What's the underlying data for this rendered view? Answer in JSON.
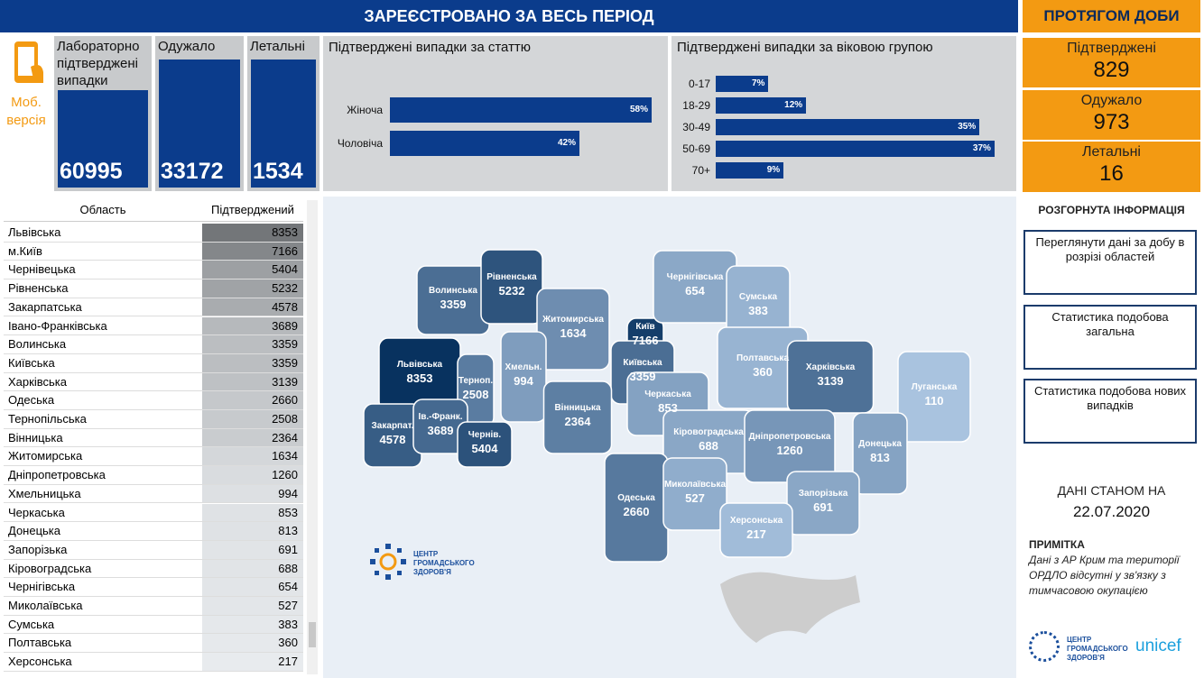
{
  "header": {
    "title": "ЗАРЕЄСТРОВАНО ЗА ВЕСЬ ПЕРІОД",
    "daily_title": "ПРОТЯГОМ ДОБИ"
  },
  "mobile": "Моб. версія",
  "totals": [
    {
      "label": "Лабораторно підтверджені випадки",
      "value": 60995
    },
    {
      "label": "Одужало",
      "value": 33172
    },
    {
      "label": "Летальні",
      "value": 1534
    }
  ],
  "sex_chart": {
    "type": "bar",
    "title": "Підтверджені випадки за статтю",
    "categories": [
      "Жіноча",
      "Чоловіча"
    ],
    "values": [
      58,
      42
    ],
    "value_labels": [
      "58%",
      "42%"
    ],
    "color": "#0b3c8c"
  },
  "age_chart": {
    "type": "bar",
    "title": "Підтверджені випадки за віковою групою",
    "categories": [
      "0-17",
      "18-29",
      "30-49",
      "50-69",
      "70+"
    ],
    "values": [
      7,
      12,
      35,
      37,
      9
    ],
    "value_labels": [
      "7%",
      "12%",
      "35%",
      "37%",
      "9%"
    ],
    "color": "#0b3c8c"
  },
  "daily": [
    {
      "label": "Підтверджені",
      "value": 829
    },
    {
      "label": "Одужало",
      "value": 973
    },
    {
      "label": "Летальні",
      "value": 16
    }
  ],
  "table": {
    "header": [
      "Область",
      "Підтверджений"
    ],
    "rows": [
      [
        "Львівська",
        8353
      ],
      [
        "м.Київ",
        7166
      ],
      [
        "Чернівецька",
        5404
      ],
      [
        "Рівненська",
        5232
      ],
      [
        "Закарпатська",
        4578
      ],
      [
        "Івано-Франківська",
        3689
      ],
      [
        "Волинська",
        3359
      ],
      [
        "Київська",
        3359
      ],
      [
        "Харківська",
        3139
      ],
      [
        "Одеська",
        2660
      ],
      [
        "Тернопільська",
        2508
      ],
      [
        "Вінницька",
        2364
      ],
      [
        "Житомирська",
        1634
      ],
      [
        "Дніпропетровська",
        1260
      ],
      [
        "Хмельницька",
        994
      ],
      [
        "Черкаська",
        853
      ],
      [
        "Донецька",
        813
      ],
      [
        "Запорізька",
        691
      ],
      [
        "Кіровоградська",
        688
      ],
      [
        "Чернігівська",
        654
      ],
      [
        "Миколаївська",
        527
      ],
      [
        "Сумська",
        383
      ],
      [
        "Полтавська",
        360
      ],
      [
        "Херсонська",
        217
      ]
    ]
  },
  "map": {
    "regions": [
      {
        "label": "Волинська",
        "value": 3359
      },
      {
        "label": "Рівненська",
        "value": 5232
      },
      {
        "label": "Житомирська",
        "value": 1634
      },
      {
        "label": "Київ",
        "value": 7166
      },
      {
        "label": "Київська",
        "value": 3359
      },
      {
        "label": "Чернігівська",
        "value": 654
      },
      {
        "label": "Сумська",
        "value": 383
      },
      {
        "label": "Львівська",
        "value": 8353
      },
      {
        "label": "Терноп.",
        "value": 2508
      },
      {
        "label": "Хмельн.",
        "value": 994
      },
      {
        "label": "Вінницька",
        "value": 2364
      },
      {
        "label": "Черкаська",
        "value": 853
      },
      {
        "label": "Полтавська",
        "value": 360
      },
      {
        "label": "Харківська",
        "value": 3139
      },
      {
        "label": "Луганська",
        "value": 110
      },
      {
        "label": "Закарпат.",
        "value": 4578
      },
      {
        "label": "Ів.-Франк.",
        "value": 3689
      },
      {
        "label": "Чернів.",
        "value": 5404
      },
      {
        "label": "Кіровоградська",
        "value": 688
      },
      {
        "label": "Дніпропетровська",
        "value": 1260
      },
      {
        "label": "Донецька",
        "value": 813
      },
      {
        "label": "Одеська",
        "value": 2660
      },
      {
        "label": "Миколаївська",
        "value": 527
      },
      {
        "label": "Запорізька",
        "value": 691
      },
      {
        "label": "Херсонська",
        "value": 217
      }
    ]
  },
  "side": {
    "title": "РОЗГОРНУТА ІНФОРМАЦІЯ",
    "links": [
      "Переглянути дані за добу в розрізі областей",
      "Статистика подобова загальна",
      "Статистика подобова нових випадків"
    ],
    "date_label": "ДАНІ СТАНОМ НА",
    "date": "22.07.2020",
    "note_title": "ПРИМІТКА",
    "note": "Дані з АР Крим та території ОРДЛО відсутні у зв'язку з тимчасовою окупацією"
  },
  "logo": "ЦЕНТР ГРОМАДСЬКОГО ЗДОРОВ'Я",
  "unicef": "unicef"
}
